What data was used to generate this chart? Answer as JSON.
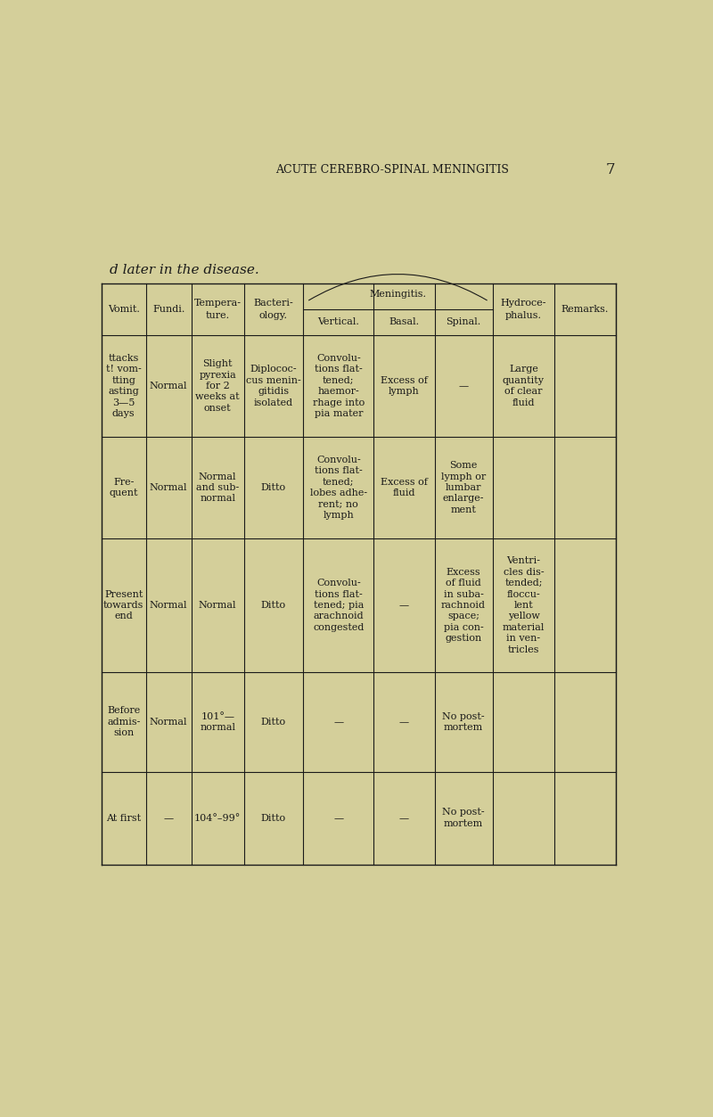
{
  "page_title": "ACUTE CEREBRO-SPINAL MENINGITIS",
  "page_number": "7",
  "italic_text": "d later in the disease.",
  "bg_color": "#d4cf9a",
  "text_color": "#1a1a1a",
  "rows": [
    {
      "vomit": "ttacks\nt! vom-\ntting\nasting\n3—5\ndays",
      "fundi": "Normal",
      "temp": "Slight\npyrexia\nfor 2\nweeks at\nonset",
      "bact": "Diplococ-\ncus menin-\ngitidis\nisolated",
      "vertical": "Convolu-\ntions flat-\ntened;\nhaemor-\nrhage into\npia mater",
      "basal": "Excess of\nlymph",
      "spinal": "—",
      "hydro": "Large\nquantity\nof clear\nfluid",
      "remarks": ""
    },
    {
      "vomit": "Fre-\nquent",
      "fundi": "Normal",
      "temp": "Normal\nand sub-\nnormal",
      "bact": "Ditto",
      "vertical": "Convolu-\ntions flat-\ntened;\nlobes adhe-\nrent; no\nlymph",
      "basal": "Excess of\nfluid",
      "spinal": "Some\nlymph or\nlumbar\nenlarge-\nment",
      "hydro": "",
      "remarks": ""
    },
    {
      "vomit": "Present\ntowards\nend",
      "fundi": "Normal",
      "temp": "Normal",
      "bact": "Ditto",
      "vertical": "Convolu-\ntions flat-\ntened; pia\narachnoid\ncongested",
      "basal": "—",
      "spinal": "Excess\nof fluid\nin suba-\nrachnoid\nspace;\npia con-\ngestion",
      "hydro": "Ventri-\ncles dis-\ntended;\nfloccu-\nlent\nyellow\nmaterial\nin ven-\ntricles",
      "remarks": ""
    },
    {
      "vomit": "Before\nadmis-\nsion",
      "fundi": "Normal",
      "temp": "101°—\nnormal",
      "bact": "Ditto",
      "vertical": "—",
      "basal": "—",
      "spinal": "No post-\nmortem",
      "hydro": "",
      "remarks": ""
    },
    {
      "vomit": "At first",
      "fundi": "—",
      "temp": "104°–99°",
      "bact": "Ditto",
      "vertical": "—",
      "basal": "—",
      "spinal": "No post-\nmortem",
      "hydro": "",
      "remarks": ""
    }
  ]
}
